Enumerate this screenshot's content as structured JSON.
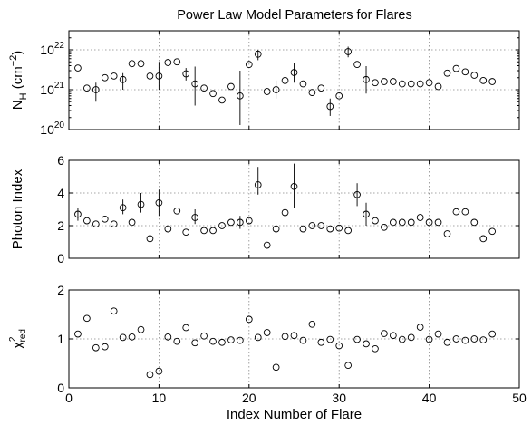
{
  "chart_data": [
    {
      "type": "scatter",
      "title": "Power Law Model Parameters for Flares",
      "ylabel": "N_H (cm^-2)",
      "yscale": "log",
      "xlim": [
        0,
        50
      ],
      "ylim": [
        1e+20,
        3e+22
      ],
      "grid": true,
      "x_ticks": [
        0,
        10,
        20,
        30,
        40,
        50
      ],
      "y_ticks": [
        1e+20,
        1e+21,
        1e+22
      ],
      "y_tick_labels": [
        "10^20",
        "10^21",
        "10^22"
      ],
      "x": [
        1,
        2,
        3,
        4,
        5,
        6,
        7,
        8,
        9,
        10,
        11,
        12,
        13,
        14,
        15,
        16,
        17,
        18,
        19,
        20,
        21,
        22,
        23,
        24,
        25,
        26,
        27,
        28,
        29,
        30,
        31,
        32,
        33,
        34,
        35,
        36,
        37,
        38,
        39,
        40,
        41,
        42,
        43,
        44,
        45,
        46,
        47
      ],
      "values": [
        3.5e+21,
        1.1e+21,
        1e+21,
        2e+21,
        2.2e+21,
        1.8e+21,
        4.5e+21,
        4.5e+21,
        2.2e+21,
        2.2e+21,
        4.8e+21,
        5e+21,
        2.5e+21,
        1.4e+21,
        1.1e+21,
        8e+20,
        5.5e+20,
        1.2e+21,
        7e+20,
        4.3e+21,
        7.8e+21,
        9e+20,
        1e+21,
        1.7e+21,
        2.7e+21,
        1.4e+21,
        8.5e+20,
        1.1e+21,
        3.8e+20,
        7e+20,
        9e+21,
        4.3e+21,
        1.8e+21,
        1.5e+21,
        1.6e+21,
        1.6e+21,
        1.4e+21,
        1.4e+21,
        1.4e+21,
        1.5e+21,
        1.2e+21,
        2.6e+21,
        3.4e+21,
        2.8e+21,
        2.3e+21,
        1.7e+21,
        1.6e+21
      ],
      "errors_low": [
        null,
        null,
        5e+20,
        null,
        null,
        1e+21,
        null,
        null,
        8e+19,
        1e+21,
        null,
        null,
        1.7e+21,
        4e+20,
        null,
        null,
        null,
        null,
        1.3e+20,
        null,
        5.5e+21,
        null,
        6e+20,
        null,
        1.5e+21,
        null,
        null,
        null,
        2.2e+20,
        null,
        6.5e+21,
        null,
        8e+20,
        null,
        null,
        null,
        null,
        null,
        null,
        null,
        null,
        null,
        null,
        null,
        null,
        null,
        null
      ],
      "errors_high": [
        5e+21,
        null,
        1.5e+21,
        null,
        null,
        2.6e+21,
        null,
        null,
        5.5e+21,
        5e+21,
        null,
        null,
        3.5e+21,
        3.8e+21,
        null,
        null,
        null,
        null,
        3e+21,
        null,
        1e+22,
        null,
        1.7e+21,
        null,
        4.8e+21,
        null,
        null,
        null,
        6e+20,
        null,
        1.2e+22,
        null,
        3.9e+21,
        null,
        null,
        null,
        null,
        null,
        null,
        null,
        null,
        null,
        null,
        null,
        null,
        null,
        null
      ]
    },
    {
      "type": "scatter",
      "ylabel": "Photon Index",
      "xlim": [
        0,
        50
      ],
      "ylim": [
        0,
        6
      ],
      "grid": true,
      "x_ticks": [
        0,
        10,
        20,
        30,
        40,
        50
      ],
      "y_ticks": [
        0,
        2,
        4,
        6
      ],
      "x": [
        1,
        2,
        3,
        4,
        5,
        6,
        7,
        8,
        9,
        10,
        11,
        12,
        13,
        14,
        15,
        16,
        17,
        18,
        19,
        20,
        21,
        22,
        23,
        24,
        25,
        26,
        27,
        28,
        29,
        30,
        31,
        32,
        33,
        34,
        35,
        36,
        37,
        38,
        39,
        40,
        41,
        42,
        43,
        44,
        45,
        46,
        47
      ],
      "values": [
        2.7,
        2.3,
        2.1,
        2.4,
        2.1,
        3.1,
        2.2,
        3.3,
        1.2,
        3.4,
        1.8,
        2.9,
        1.6,
        2.5,
        1.7,
        1.7,
        2.0,
        2.2,
        2.2,
        2.3,
        4.5,
        0.8,
        1.8,
        2.8,
        4.4,
        1.8,
        2.0,
        2.0,
        1.8,
        1.85,
        1.7,
        3.9,
        2.7,
        2.3,
        1.9,
        2.2,
        2.2,
        2.2,
        2.5,
        2.2,
        2.2,
        1.5,
        2.85,
        2.85,
        2.2,
        1.2,
        1.65
      ],
      "errors_low": [
        2.3,
        null,
        null,
        null,
        null,
        2.7,
        null,
        2.8,
        0.5,
        2.6,
        null,
        null,
        null,
        2.1,
        null,
        null,
        null,
        null,
        1.8,
        null,
        3.9,
        null,
        null,
        null,
        3.1,
        null,
        null,
        null,
        null,
        null,
        null,
        3.2,
        2.0,
        null,
        null,
        null,
        null,
        null,
        null,
        null,
        null,
        null,
        null,
        null,
        null,
        null,
        null
      ],
      "errors_high": [
        3.1,
        null,
        null,
        null,
        null,
        3.6,
        null,
        4.0,
        2.0,
        4.2,
        null,
        null,
        null,
        3.0,
        null,
        null,
        null,
        null,
        2.6,
        null,
        5.6,
        null,
        null,
        null,
        5.8,
        null,
        null,
        null,
        null,
        null,
        null,
        4.6,
        3.4,
        null,
        null,
        null,
        null,
        null,
        null,
        null,
        null,
        null,
        null,
        null,
        null,
        null,
        null
      ]
    },
    {
      "type": "scatter",
      "ylabel": "χ²_red",
      "xlabel": "Index Number of Flare",
      "xlim": [
        0,
        50
      ],
      "ylim": [
        0,
        2
      ],
      "grid": true,
      "x_ticks": [
        0,
        10,
        20,
        30,
        40,
        50
      ],
      "y_ticks": [
        0,
        1,
        2
      ],
      "x": [
        1,
        2,
        3,
        4,
        5,
        6,
        7,
        8,
        9,
        10,
        11,
        12,
        13,
        14,
        15,
        16,
        17,
        18,
        19,
        20,
        21,
        22,
        23,
        24,
        25,
        26,
        27,
        28,
        29,
        30,
        31,
        32,
        33,
        34,
        35,
        36,
        37,
        38,
        39,
        40,
        41,
        42,
        43,
        44,
        45,
        46,
        47
      ],
      "values": [
        1.1,
        1.42,
        0.82,
        0.84,
        1.57,
        1.03,
        1.04,
        1.19,
        0.27,
        0.34,
        1.04,
        0.95,
        1.23,
        0.92,
        1.06,
        0.95,
        0.93,
        0.98,
        0.97,
        1.4,
        1.03,
        1.13,
        0.42,
        1.05,
        1.07,
        0.97,
        1.3,
        0.93,
        0.99,
        0.86,
        0.46,
        0.99,
        0.9,
        0.8,
        1.11,
        1.07,
        0.99,
        1.03,
        1.24,
        0.99,
        1.1,
        0.93,
        1.0,
        0.97,
        1.0,
        0.98,
        1.1
      ]
    }
  ]
}
